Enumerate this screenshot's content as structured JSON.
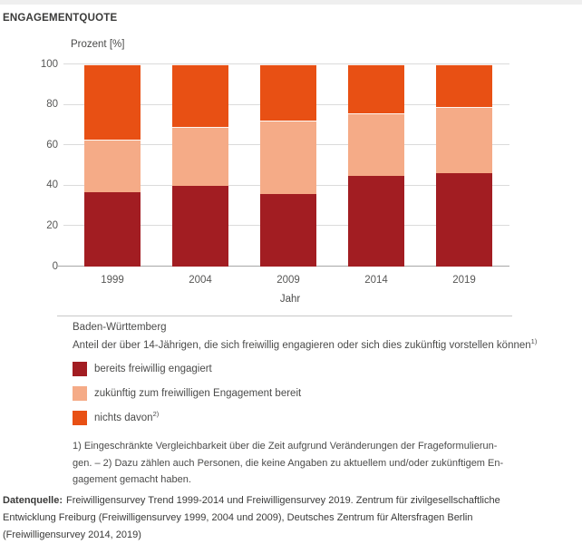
{
  "header": {
    "title": "ENGAGEMENTQUOTE"
  },
  "chart_data": {
    "type": "bar",
    "stacked": true,
    "title": "ENGAGEMENTQUOTE",
    "categories": [
      "1999",
      "2004",
      "2009",
      "2014",
      "2019"
    ],
    "series": [
      {
        "name": "bereits freiwillig engagiert",
        "color": "#a21d22",
        "values": [
          37,
          40,
          36,
          45,
          46
        ]
      },
      {
        "name": "zukünftig zum freiwilligen Engagement bereit",
        "color": "#f5ab87",
        "values": [
          26,
          29,
          36,
          31,
          33
        ]
      },
      {
        "name": "nichts davon",
        "color": "#e85014",
        "values": [
          37,
          31,
          28,
          24,
          21
        ]
      }
    ],
    "xlabel": "Jahr",
    "ylabel": "Prozent [%]",
    "ylim": [
      0,
      100
    ],
    "y_ticks": [
      0,
      20,
      40,
      60,
      80,
      100
    ],
    "grid": true,
    "legend_position": "below"
  },
  "region": "Baden-Württemberg",
  "subtitle": {
    "text": "Anteil der über 14-Jährigen, die sich freiwillig engagieren oder sich dies zukünftig vorstellen können",
    "sup": "1)"
  },
  "legend": {
    "items": [
      {
        "label": "bereits freiwillig engagiert",
        "sup": ""
      },
      {
        "label": "zukünftig zum freiwilligen Engagement bereit",
        "sup": ""
      },
      {
        "label": "nichts davon",
        "sup": "2)"
      }
    ]
  },
  "footnotes": {
    "lines": [
      "1) Eingeschränkte Vergleichbarkeit über die Zeit aufgrund Veränderungen der Frageformulierun-",
      "gen. – 2) Dazu zählen auch Personen, die keine Angaben zu aktuellem und/oder zukünftigem En-",
      "gagement gemacht haben."
    ]
  },
  "datasource": {
    "label": "Datenquelle:",
    "lines": [
      "Freiwilligensurvey Trend 1999-2014 und Freiwilligensurvey 2019. Zentrum für zivilgesellschaftliche",
      "Entwicklung Freiburg (Freiwilligensurvey 1999, 2004 und 2009), Deutsches Zentrum für Altersfragen Berlin",
      "(Freiwilligensurvey 2014, 2019)"
    ]
  }
}
